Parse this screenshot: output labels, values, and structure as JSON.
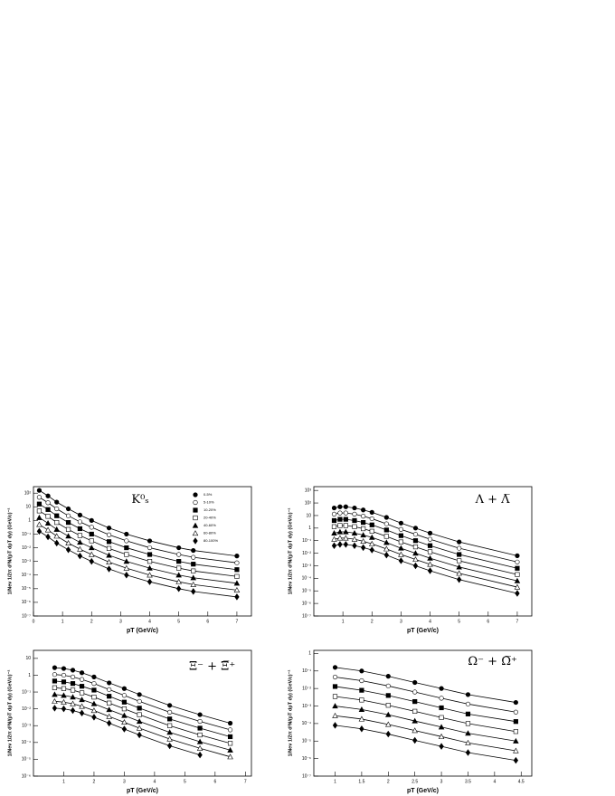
{
  "chart_data": [
    {
      "type": "scatter",
      "title": "K⁰ₛ",
      "xlabel": "pT (GeV/c)",
      "ylabel": "1/Nev 1/2π d²N/(pT dpT dy) (GeV/c)⁻²",
      "log_y": true,
      "legend": "top-right",
      "x": [
        0.2,
        0.5,
        0.8,
        1.2,
        1.6,
        2.0,
        2.6,
        3.2,
        4.0,
        5.0,
        5.5,
        7.0
      ],
      "xlim": [
        0,
        7.5
      ],
      "xticks": [
        0,
        1,
        2,
        3,
        4,
        5,
        6,
        7
      ],
      "ylim": [
        1e-07,
        300
      ],
      "yticks": [
        {
          "value": 100,
          "label": "10²"
        },
        10,
        1,
        {
          "value": 0.1,
          "label": "10⁻¹"
        },
        {
          "value": 0.01,
          "label": "10⁻²"
        },
        {
          "value": 0.001,
          "label": "10⁻³"
        },
        {
          "value": 0.0001,
          "label": "10⁻⁴"
        },
        {
          "value": 1e-05,
          "label": "10⁻⁵"
        },
        {
          "value": 1e-06,
          "label": "10⁻⁶"
        },
        {
          "value": 1e-07,
          "label": "10⁻⁷"
        }
      ],
      "series": [
        {
          "name": "0-5%",
          "marker": "circle",
          "color": "#000000",
          "values": [
            160,
            63,
            22,
            7.1,
            2.5,
            1,
            0.28,
            0.1,
            0.032,
            0.01,
            0.0063,
            0.0025
          ]
        },
        {
          "name": "5-10%",
          "marker": "circle-open",
          "color": "#000000",
          "values": [
            50,
            20,
            7.1,
            2.2,
            0.79,
            0.32,
            0.089,
            0.032,
            0.01,
            0.0032,
            0.002,
            0.00079
          ]
        },
        {
          "name": "10-20%",
          "marker": "square",
          "color": "#000000",
          "values": [
            16,
            6.3,
            2.2,
            0.71,
            0.25,
            0.1,
            0.028,
            0.01,
            0.0032,
            0.001,
            0.00063,
            0.00025
          ]
        },
        {
          "name": "20-40%",
          "marker": "square-open",
          "color": "#000000",
          "values": [
            5,
            2,
            0.71,
            0.22,
            0.079,
            0.032,
            0.0089,
            0.0032,
            0.001,
            0.00032,
            0.0002,
            7.9e-05
          ]
        },
        {
          "name": "40-60%",
          "marker": "triangle",
          "color": "#000000",
          "values": [
            1.6,
            0.63,
            0.22,
            0.071,
            0.025,
            0.01,
            0.0028,
            0.001,
            0.00032,
            0.0001,
            6.3e-05,
            2.5e-05
          ]
        },
        {
          "name": "60-80%",
          "marker": "triangle-open",
          "color": "#000000",
          "values": [
            0.5,
            0.2,
            0.071,
            0.022,
            0.0079,
            0.0032,
            0.00089,
            0.00032,
            0.0001,
            3.2e-05,
            2e-05,
            7.9e-06
          ]
        },
        {
          "name": "80-100%",
          "marker": "diamond",
          "color": "#000000",
          "values": [
            0.16,
            0.063,
            0.022,
            0.0071,
            0.0025,
            0.001,
            0.00028,
            0.0001,
            3.2e-05,
            1e-05,
            6.3e-06,
            2.5e-06
          ]
        }
      ]
    },
    {
      "type": "scatter",
      "title": "Λ + Λ̅",
      "xlabel": "pT (GeV/c)",
      "ylabel": "1/Nev 1/2π d²N/(pT dpT dy) (GeV/c)⁻²",
      "log_y": true,
      "x": [
        0.7,
        0.9,
        1.1,
        1.4,
        1.7,
        2.0,
        2.5,
        3.0,
        3.5,
        4.0,
        5.0,
        7.0
      ],
      "xlim": [
        0,
        7.5
      ],
      "xticks": [
        1,
        2,
        3,
        4,
        5,
        6,
        7
      ],
      "ylim": [
        1e-07,
        2000
      ],
      "yticks": [
        {
          "value": 1000,
          "label": "10³"
        },
        {
          "value": 100,
          "label": "10²"
        },
        10,
        1,
        {
          "value": 0.1,
          "label": "10⁻¹"
        },
        {
          "value": 0.01,
          "label": "10⁻²"
        },
        {
          "value": 0.001,
          "label": "10⁻³"
        },
        {
          "value": 0.0001,
          "label": "10⁻⁴"
        },
        {
          "value": 1e-05,
          "label": "10⁻⁵"
        },
        {
          "value": 1e-06,
          "label": "10⁻⁶"
        },
        {
          "value": 1e-07,
          "label": "10⁻⁷"
        }
      ],
      "series": [
        {
          "marker": "circle",
          "color": "#000000",
          "values": [
            40,
            50,
            50,
            40,
            28,
            18,
            7.1,
            2.5,
            1,
            0.4,
            0.079,
            0.0063
          ]
        },
        {
          "marker": "circle-open",
          "color": "#000000",
          "values": [
            13,
            16,
            16,
            13,
            8.9,
            5.6,
            2.2,
            0.79,
            0.32,
            0.13,
            0.025,
            0.002
          ]
        },
        {
          "marker": "square",
          "color": "#000000",
          "values": [
            4,
            5,
            5,
            4,
            2.8,
            1.8,
            0.71,
            0.25,
            0.1,
            0.04,
            0.0079,
            0.00063
          ]
        },
        {
          "marker": "square-open",
          "color": "#000000",
          "values": [
            1.3,
            1.6,
            1.6,
            1.3,
            0.89,
            0.56,
            0.22,
            0.079,
            0.032,
            0.013,
            0.0025,
            0.0002
          ]
        },
        {
          "marker": "triangle",
          "color": "#000000",
          "values": [
            0.4,
            0.5,
            0.5,
            0.4,
            0.28,
            0.18,
            0.071,
            0.025,
            0.01,
            0.004,
            0.00079,
            6.3e-05
          ]
        },
        {
          "marker": "triangle-open",
          "color": "#000000",
          "values": [
            0.13,
            0.16,
            0.16,
            0.13,
            0.089,
            0.056,
            0.022,
            0.0079,
            0.0032,
            0.0013,
            0.00025,
            2e-05
          ]
        },
        {
          "marker": "diamond",
          "color": "#000000",
          "values": [
            0.04,
            0.05,
            0.05,
            0.04,
            0.028,
            0.018,
            0.0071,
            0.0025,
            0.001,
            0.0004,
            7.9e-05,
            6.3e-06
          ]
        }
      ]
    },
    {
      "type": "scatter",
      "title": "Ξ⁻ + Ξ̅⁺",
      "xlabel": "pT (GeV/c)",
      "ylabel": "1/Nev 1/2π d²N/(pT dpT dy) (GeV/c)⁻²",
      "log_y": true,
      "x": [
        0.7,
        1.0,
        1.3,
        1.6,
        2.0,
        2.5,
        3.0,
        3.5,
        4.5,
        5.5,
        6.5
      ],
      "xlim": [
        0,
        7.2
      ],
      "xticks": [
        1,
        2,
        3,
        4,
        5,
        6,
        7
      ],
      "ylim": [
        1e-06,
        30
      ],
      "yticks": [
        10,
        1,
        {
          "value": 0.1,
          "label": "10⁻¹"
        },
        {
          "value": 0.01,
          "label": "10⁻²"
        },
        {
          "value": 0.001,
          "label": "10⁻³"
        },
        {
          "value": 0.0001,
          "label": "10⁻⁴"
        },
        {
          "value": 1e-05,
          "label": "10⁻⁵"
        },
        {
          "value": 1e-06,
          "label": "10⁻⁶"
        }
      ],
      "series": [
        {
          "marker": "circle",
          "color": "#000000",
          "values": [
            2.8,
            2.5,
            2.0,
            1.4,
            0.79,
            0.35,
            0.16,
            0.071,
            0.016,
            0.0045,
            0.0014
          ]
        },
        {
          "marker": "circle-open",
          "color": "#000000",
          "values": [
            1.1,
            1,
            0.79,
            0.56,
            0.32,
            0.14,
            0.063,
            0.028,
            0.0063,
            0.0018,
            0.00056
          ]
        },
        {
          "marker": "square",
          "color": "#000000",
          "values": [
            0.45,
            0.4,
            0.32,
            0.22,
            0.13,
            0.056,
            0.025,
            0.011,
            0.0025,
            0.00071,
            0.00022
          ]
        },
        {
          "marker": "square-open",
          "color": "#000000",
          "values": [
            0.18,
            0.16,
            0.13,
            0.089,
            0.05,
            0.022,
            0.01,
            0.0045,
            0.001,
            0.00028,
            8.9e-05
          ]
        },
        {
          "marker": "triangle",
          "color": "#000000",
          "values": [
            0.071,
            0.063,
            0.05,
            0.035,
            0.02,
            0.0089,
            0.004,
            0.0018,
            0.0004,
            0.00011,
            3.5e-05
          ]
        },
        {
          "marker": "triangle-open",
          "color": "#000000",
          "values": [
            0.028,
            0.025,
            0.02,
            0.014,
            0.0079,
            0.0035,
            0.0016,
            0.00071,
            0.00016,
            4.5e-05,
            1.4e-05
          ]
        },
        {
          "marker": "diamond",
          "color": "#000000",
          "values": [
            0.011,
            0.01,
            0.0079,
            0.0056,
            0.0032,
            0.0014,
            0.00063,
            0.00028,
            6.3e-05,
            1.8e-05,
            null
          ]
        }
      ]
    },
    {
      "type": "scatter",
      "title": "Ω⁻ + Ω̅⁺",
      "xlabel": "pT (GeV/c)",
      "ylabel": "1/Nev 1/2π d²N/(pT dpT dy) (GeV/c)⁻²",
      "log_y": true,
      "x": [
        1.0,
        1.5,
        2.0,
        2.5,
        3.0,
        3.5,
        4.4
      ],
      "xlim": [
        0.6,
        4.7
      ],
      "xticks": [
        1,
        1.5,
        2,
        2.5,
        3,
        3.5,
        4,
        4.5
      ],
      "ylim": [
        1e-07,
        1.5
      ],
      "yticks": [
        1,
        {
          "value": 0.1,
          "label": "10⁻¹"
        },
        {
          "value": 0.01,
          "label": "10⁻²"
        },
        {
          "value": 0.001,
          "label": "10⁻³"
        },
        {
          "value": 0.0001,
          "label": "10⁻⁴"
        },
        {
          "value": 1e-05,
          "label": "10⁻⁵"
        },
        {
          "value": 1e-06,
          "label": "10⁻⁶"
        },
        {
          "value": 1e-07,
          "label": "10⁻⁷"
        }
      ],
      "series": [
        {
          "marker": "circle",
          "color": "#000000",
          "values": [
            0.16,
            0.1,
            0.05,
            0.022,
            0.01,
            0.0045,
            0.0016
          ]
        },
        {
          "marker": "circle-open",
          "color": "#000000",
          "values": [
            0.045,
            0.028,
            0.014,
            0.0063,
            0.0028,
            0.0013,
            0.00045
          ]
        },
        {
          "marker": "square",
          "color": "#000000",
          "values": [
            0.013,
            0.0079,
            0.004,
            0.0018,
            0.00079,
            0.00035,
            0.00013
          ]
        },
        {
          "marker": "square-open",
          "color": "#000000",
          "values": [
            0.0035,
            0.0022,
            0.0011,
            0.0005,
            0.00022,
            0.0001,
            3.5e-05
          ]
        },
        {
          "marker": "triangle",
          "color": "#000000",
          "values": [
            0.001,
            0.00063,
            0.00032,
            0.00014,
            6.3e-05,
            2.8e-05,
            1e-05
          ]
        },
        {
          "marker": "triangle-open",
          "color": "#000000",
          "values": [
            0.00028,
            0.00018,
            8.9e-05,
            4e-05,
            1.8e-05,
            7.9e-06,
            2.8e-06
          ]
        },
        {
          "marker": "diamond",
          "color": "#000000",
          "values": [
            7.9e-05,
            5e-05,
            2.5e-05,
            1.1e-05,
            5e-06,
            2.2e-06,
            7.9e-07
          ]
        }
      ]
    }
  ]
}
